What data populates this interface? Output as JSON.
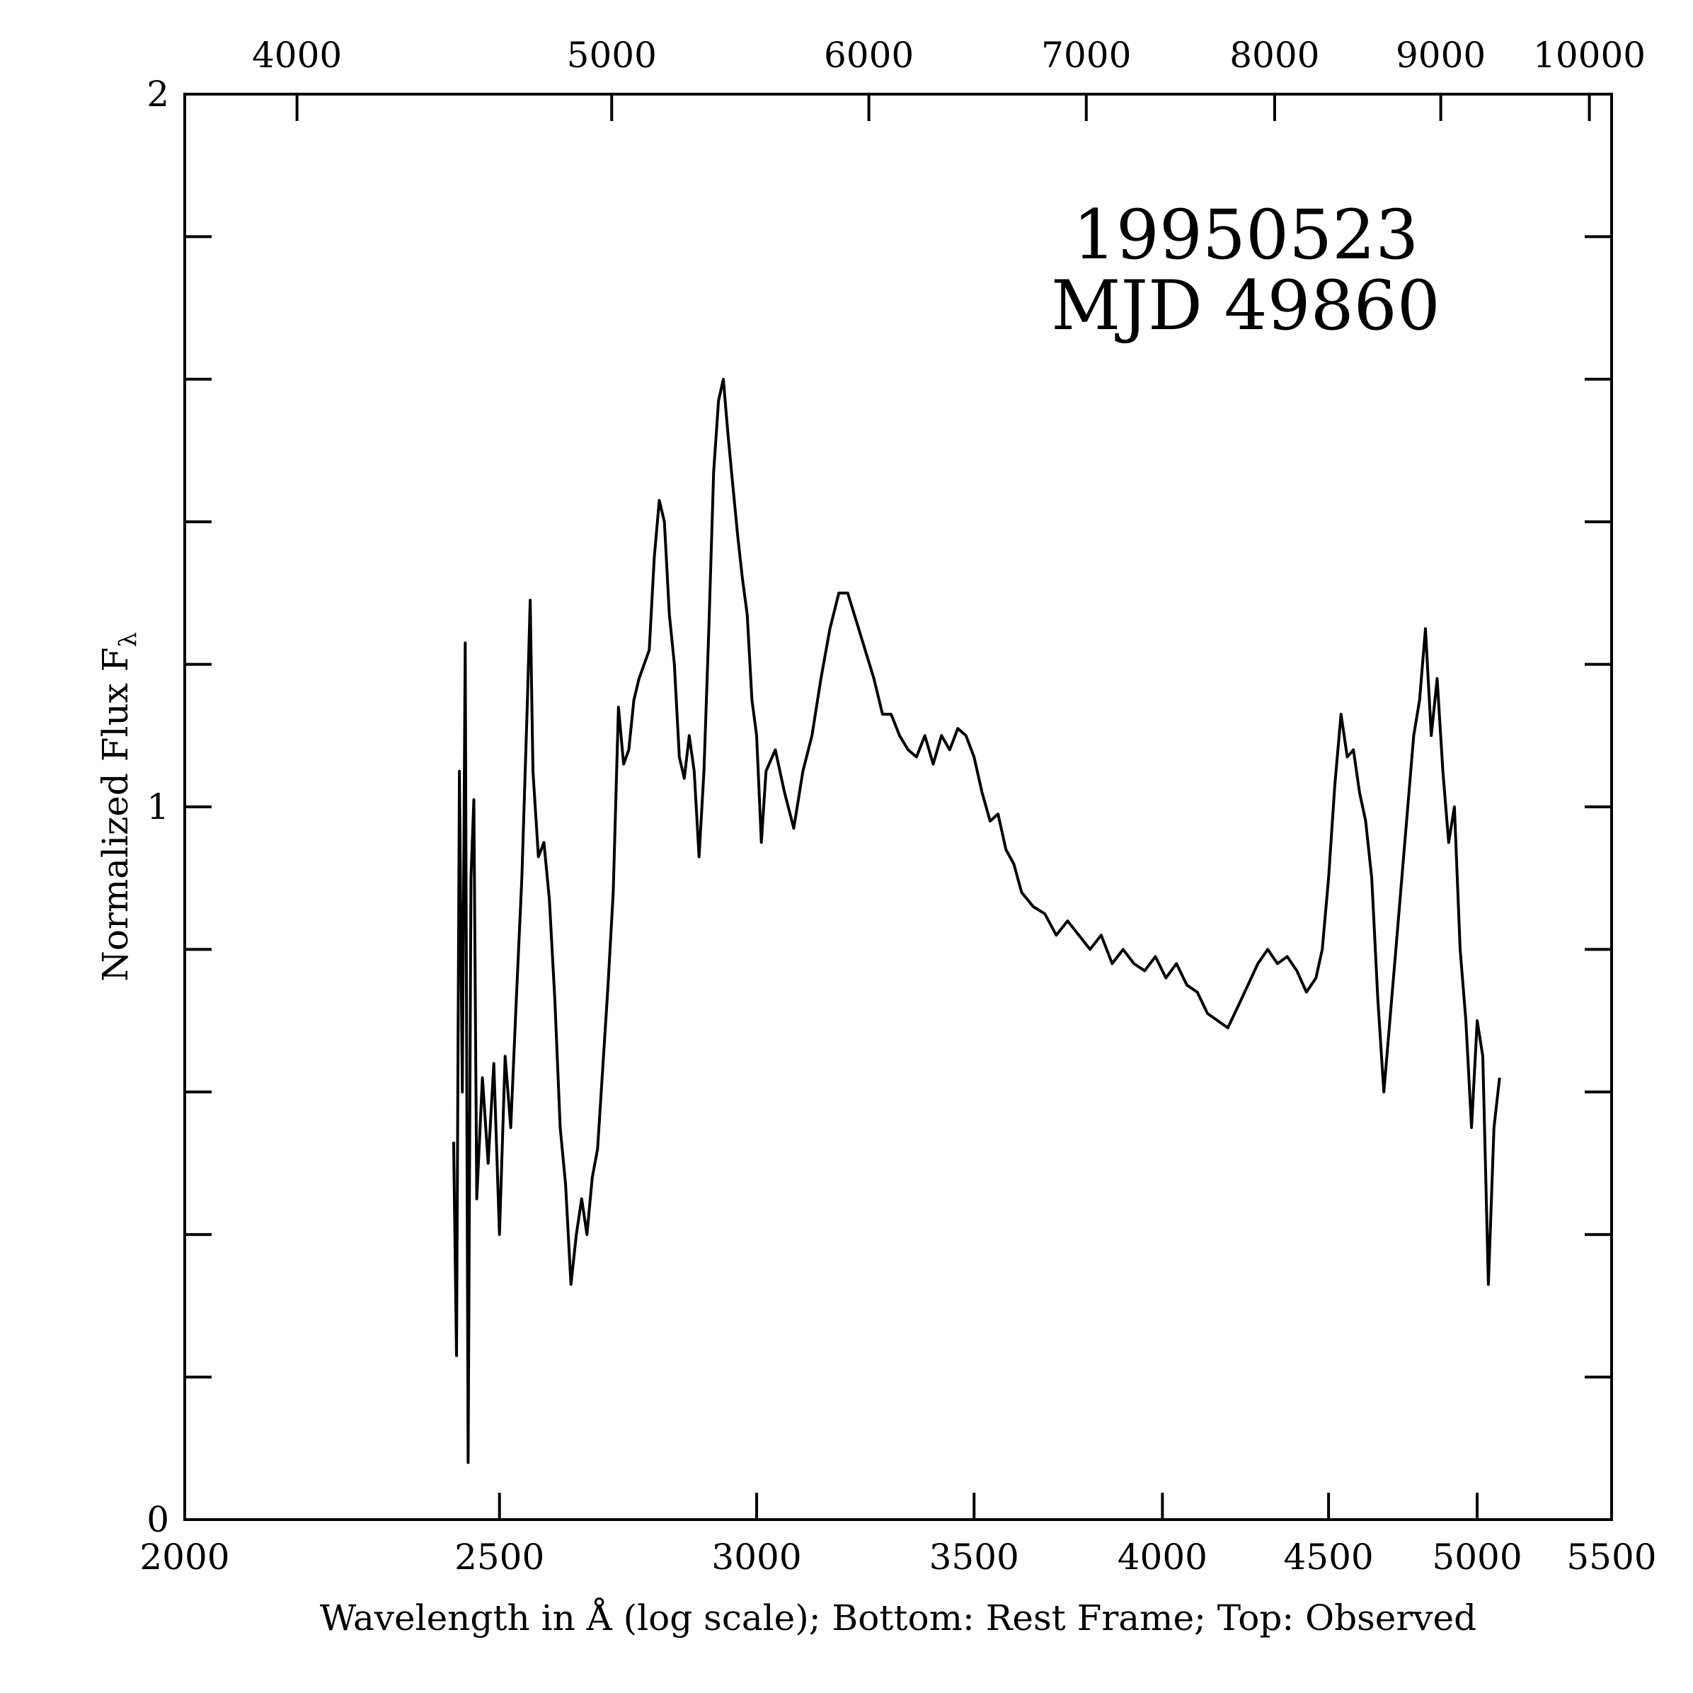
{
  "chart_data": {
    "type": "line",
    "annotations": [
      "19950523",
      "MJD 49860"
    ],
    "xlabel": "Wavelength in Å (log scale); Bottom: Rest Frame; Top: Observed",
    "ylabel": "Normalized Flux F",
    "ylabel_subscript": "λ",
    "xscale": "log",
    "xlim": [
      2000,
      5500
    ],
    "xticks": [
      2000,
      2500,
      3000,
      3500,
      4000,
      4500,
      5000,
      5500
    ],
    "x2lim": [
      3694,
      10159
    ],
    "x2ticks": [
      4000,
      5000,
      6000,
      7000,
      8000,
      9000,
      10000
    ],
    "ylim": [
      0,
      2
    ],
    "yticks": [
      0,
      1,
      2
    ],
    "y_minor_ticks": [
      0.2,
      0.4,
      0.6,
      0.8,
      1.2,
      1.4,
      1.6,
      1.8
    ],
    "series": [
      {
        "color": "#000000",
        "x": [
          2420,
          2425,
          2430,
          2435,
          2440,
          2445,
          2450,
          2455,
          2460,
          2470,
          2480,
          2490,
          2500,
          2510,
          2520,
          2530,
          2540,
          2550,
          2555,
          2560,
          2570,
          2580,
          2590,
          2600,
          2610,
          2620,
          2630,
          2640,
          2650,
          2660,
          2670,
          2680,
          2700,
          2710,
          2720,
          2730,
          2740,
          2750,
          2760,
          2780,
          2790,
          2800,
          2810,
          2820,
          2830,
          2840,
          2850,
          2860,
          2870,
          2880,
          2890,
          2900,
          2910,
          2920,
          2930,
          2940,
          2950,
          2960,
          2970,
          2980,
          2990,
          3000,
          3010,
          3020,
          3040,
          3060,
          3080,
          3100,
          3120,
          3140,
          3160,
          3180,
          3200,
          3220,
          3240,
          3260,
          3280,
          3300,
          3320,
          3340,
          3360,
          3380,
          3400,
          3420,
          3440,
          3460,
          3480,
          3500,
          3520,
          3540,
          3560,
          3580,
          3600,
          3620,
          3650,
          3680,
          3710,
          3740,
          3770,
          3800,
          3830,
          3860,
          3890,
          3920,
          3950,
          3980,
          4010,
          4040,
          4070,
          4100,
          4130,
          4160,
          4190,
          4220,
          4250,
          4280,
          4310,
          4340,
          4370,
          4400,
          4430,
          4460,
          4480,
          4500,
          4520,
          4540,
          4560,
          4580,
          4600,
          4620,
          4640,
          4660,
          4680,
          4700,
          4720,
          4740,
          4760,
          4780,
          4800,
          4820,
          4840,
          4860,
          4880,
          4900,
          4920,
          4940,
          4960,
          4980,
          5000,
          5020,
          5040,
          5060,
          5080
        ],
        "values": [
          0.53,
          0.23,
          1.05,
          0.6,
          1.23,
          0.08,
          0.9,
          1.01,
          0.45,
          0.62,
          0.5,
          0.64,
          0.4,
          0.65,
          0.55,
          0.73,
          0.9,
          1.15,
          1.29,
          1.05,
          0.93,
          0.95,
          0.87,
          0.73,
          0.55,
          0.47,
          0.33,
          0.4,
          0.45,
          0.4,
          0.48,
          0.52,
          0.75,
          0.88,
          1.14,
          1.06,
          1.08,
          1.15,
          1.18,
          1.22,
          1.35,
          1.43,
          1.4,
          1.27,
          1.2,
          1.07,
          1.04,
          1.1,
          1.05,
          0.93,
          1.05,
          1.25,
          1.47,
          1.57,
          1.6,
          1.52,
          1.45,
          1.38,
          1.32,
          1.27,
          1.15,
          1.1,
          0.95,
          1.05,
          1.08,
          1.02,
          0.97,
          1.05,
          1.1,
          1.18,
          1.25,
          1.3,
          1.3,
          1.26,
          1.22,
          1.18,
          1.13,
          1.13,
          1.1,
          1.08,
          1.07,
          1.1,
          1.06,
          1.1,
          1.08,
          1.11,
          1.1,
          1.07,
          1.02,
          0.98,
          0.99,
          0.94,
          0.92,
          0.88,
          0.86,
          0.85,
          0.82,
          0.84,
          0.82,
          0.8,
          0.82,
          0.78,
          0.8,
          0.78,
          0.77,
          0.79,
          0.76,
          0.78,
          0.75,
          0.74,
          0.71,
          0.7,
          0.69,
          0.72,
          0.75,
          0.78,
          0.8,
          0.78,
          0.79,
          0.77,
          0.74,
          0.76,
          0.8,
          0.9,
          1.03,
          1.13,
          1.07,
          1.08,
          1.02,
          0.98,
          0.9,
          0.73,
          0.6,
          0.7,
          0.8,
          0.9,
          1.0,
          1.1,
          1.15,
          1.25,
          1.1,
          1.18,
          1.05,
          0.95,
          1.0,
          0.8,
          0.7,
          0.55,
          0.7,
          0.65,
          0.33,
          0.55,
          0.62
        ]
      }
    ]
  }
}
